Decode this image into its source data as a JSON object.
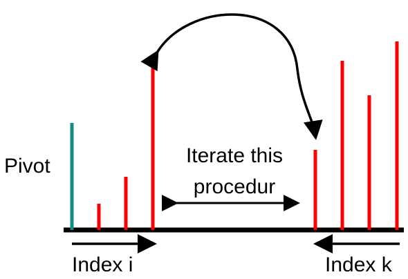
{
  "labels": {
    "pivot": "Pivot",
    "iterate_line1": "Iterate this",
    "iterate_line2": "procedur",
    "index_i": "Index i",
    "index_k": "Index k"
  },
  "colors": {
    "pivot_bar": "#138a84",
    "element_bar": "#ff0000",
    "baseline": "#000000",
    "arrow": "#000000",
    "background": "#ffffff"
  }
}
